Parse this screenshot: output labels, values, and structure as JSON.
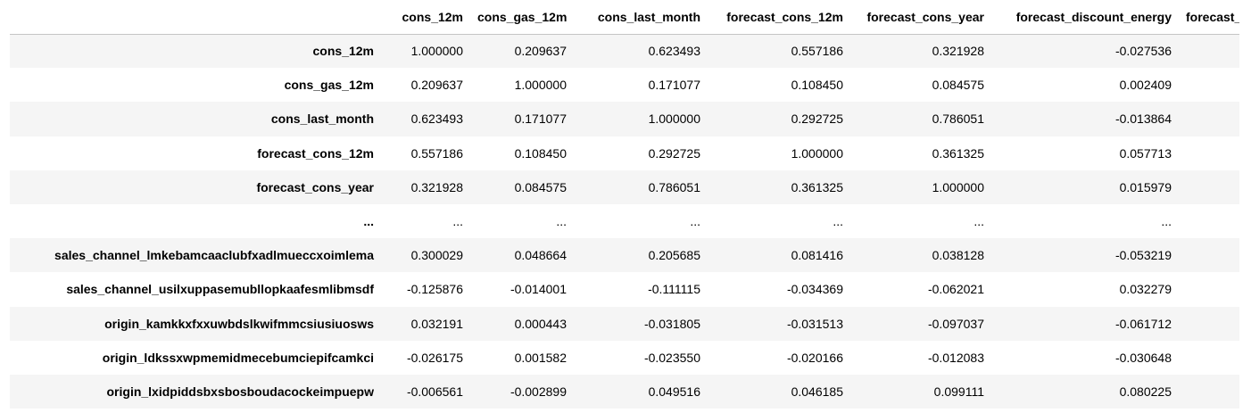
{
  "table": {
    "columns": [
      "cons_12m",
      "cons_gas_12m",
      "cons_last_month",
      "forecast_cons_12m",
      "forecast_cons_year",
      "forecast_discount_energy",
      "forecast_"
    ],
    "rows": [
      {
        "index": "cons_12m",
        "values": [
          "1.000000",
          "0.209637",
          "0.623493",
          "0.557186",
          "0.321928",
          "-0.027536",
          ""
        ]
      },
      {
        "index": "cons_gas_12m",
        "values": [
          "0.209637",
          "1.000000",
          "0.171077",
          "0.108450",
          "0.084575",
          "0.002409",
          ""
        ]
      },
      {
        "index": "cons_last_month",
        "values": [
          "0.623493",
          "0.171077",
          "1.000000",
          "0.292725",
          "0.786051",
          "-0.013864",
          ""
        ]
      },
      {
        "index": "forecast_cons_12m",
        "values": [
          "0.557186",
          "0.108450",
          "0.292725",
          "1.000000",
          "0.361325",
          "0.057713",
          ""
        ]
      },
      {
        "index": "forecast_cons_year",
        "values": [
          "0.321928",
          "0.084575",
          "0.786051",
          "0.361325",
          "1.000000",
          "0.015979",
          ""
        ]
      },
      {
        "index": "...",
        "values": [
          "...",
          "...",
          "...",
          "...",
          "...",
          "...",
          ""
        ]
      },
      {
        "index": "sales_channel_lmkebamcaaclubfxadlmueccxoimlema",
        "values": [
          "0.300029",
          "0.048664",
          "0.205685",
          "0.081416",
          "0.038128",
          "-0.053219",
          ""
        ]
      },
      {
        "index": "sales_channel_usilxuppasemubllopkaafesmlibmsdf",
        "values": [
          "-0.125876",
          "-0.014001",
          "-0.111115",
          "-0.034369",
          "-0.062021",
          "0.032279",
          ""
        ]
      },
      {
        "index": "origin_kamkkxfxxuwbdslkwifmmcsiusiuosws",
        "values": [
          "0.032191",
          "0.000443",
          "-0.031805",
          "-0.031513",
          "-0.097037",
          "-0.061712",
          ""
        ]
      },
      {
        "index": "origin_ldkssxwpmemidmecebumciepifcamkci",
        "values": [
          "-0.026175",
          "0.001582",
          "-0.023550",
          "-0.020166",
          "-0.012083",
          "-0.030648",
          ""
        ]
      },
      {
        "index": "origin_lxidpiddsbxsbosboudacockeimpuepw",
        "values": [
          "-0.006561",
          "-0.002899",
          "0.049516",
          "0.046185",
          "0.099111",
          "0.080225",
          ""
        ]
      }
    ]
  }
}
